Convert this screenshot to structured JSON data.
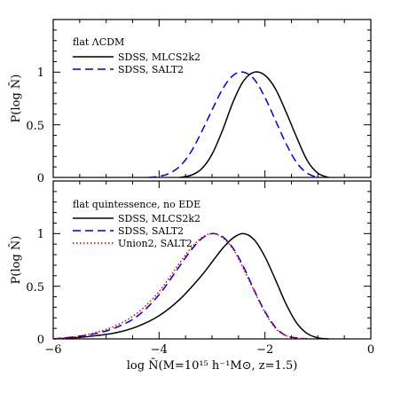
{
  "chart_data": [
    {
      "type": "line",
      "title": "flat ΛCDM",
      "xlabel": "log N̄(M=10¹⁵ h⁻¹M⊙, z=1.5)",
      "ylabel": "P(log N̄)",
      "xlim": [
        -6,
        0
      ],
      "ylim": [
        0,
        1.5
      ],
      "yticks": [
        0,
        0.5,
        1
      ],
      "ytick_labels": [
        "0",
        "0.5",
        "1"
      ],
      "grid": false,
      "legend_position": "top-left",
      "series": [
        {
          "name": "SDSS, MLCS2k2",
          "color": "#000000",
          "dash": "solid",
          "x": [
            -3.6,
            -3.4,
            -3.2,
            -3.0,
            -2.8,
            -2.6,
            -2.4,
            -2.2,
            -2.0,
            -1.8,
            -1.6,
            -1.4,
            -1.2,
            -1.0,
            -0.8
          ],
          "y": [
            0.0,
            0.02,
            0.08,
            0.22,
            0.45,
            0.72,
            0.92,
            1.0,
            0.97,
            0.84,
            0.62,
            0.38,
            0.16,
            0.04,
            0.0
          ]
        },
        {
          "name": "SDSS, SALT2",
          "color": "#0000cc",
          "dash": "dashed",
          "x": [
            -4.2,
            -4.0,
            -3.8,
            -3.6,
            -3.4,
            -3.2,
            -3.0,
            -2.8,
            -2.6,
            -2.4,
            -2.2,
            -2.0,
            -1.8,
            -1.6,
            -1.4,
            -1.2,
            -1.0
          ],
          "y": [
            0.0,
            0.01,
            0.04,
            0.11,
            0.24,
            0.43,
            0.64,
            0.84,
            0.97,
            1.0,
            0.93,
            0.76,
            0.54,
            0.32,
            0.14,
            0.04,
            0.0
          ]
        }
      ]
    },
    {
      "type": "line",
      "title": "flat quintessence, no EDE",
      "xlabel": "log N̄(M=10¹⁵ h⁻¹M⊙, z=1.5)",
      "ylabel": "P(log N̄)",
      "xlim": [
        -6,
        0
      ],
      "ylim": [
        0,
        1.5
      ],
      "xticks": [
        -6,
        -4,
        -2,
        0
      ],
      "xtick_labels": [
        "−6",
        "−4",
        "−2",
        "0"
      ],
      "yticks": [
        0,
        0.5,
        1
      ],
      "ytick_labels": [
        "0",
        "0.5",
        "1"
      ],
      "grid": false,
      "legend_position": "top-left",
      "series": [
        {
          "name": "SDSS, MLCS2k2",
          "color": "#000000",
          "dash": "solid",
          "x": [
            -6.0,
            -5.6,
            -5.2,
            -4.8,
            -4.4,
            -4.0,
            -3.6,
            -3.2,
            -3.0,
            -2.8,
            -2.6,
            -2.4,
            -2.2,
            -2.0,
            -1.8,
            -1.6,
            -1.4,
            -1.2,
            -1.0,
            -0.8
          ],
          "y": [
            0.0,
            0.01,
            0.03,
            0.06,
            0.12,
            0.22,
            0.38,
            0.6,
            0.73,
            0.86,
            0.96,
            1.0,
            0.94,
            0.78,
            0.56,
            0.33,
            0.15,
            0.05,
            0.01,
            0.0
          ]
        },
        {
          "name": "SDSS, SALT2",
          "color": "#0000cc",
          "dash": "dashed",
          "x": [
            -6.0,
            -5.6,
            -5.2,
            -4.8,
            -4.4,
            -4.0,
            -3.6,
            -3.4,
            -3.2,
            -3.0,
            -2.8,
            -2.6,
            -2.4,
            -2.2,
            -2.0,
            -1.8,
            -1.6,
            -1.4,
            -1.2
          ],
          "y": [
            0.0,
            0.02,
            0.05,
            0.11,
            0.22,
            0.42,
            0.7,
            0.84,
            0.95,
            1.0,
            0.97,
            0.86,
            0.68,
            0.46,
            0.26,
            0.11,
            0.03,
            0.01,
            0.0
          ]
        },
        {
          "name": "Union2, SALT2",
          "color": "#dd0000",
          "dash": "dotted",
          "x": [
            -6.0,
            -5.6,
            -5.2,
            -4.8,
            -4.4,
            -4.0,
            -3.6,
            -3.4,
            -3.2,
            -3.0,
            -2.8,
            -2.6,
            -2.4,
            -2.2,
            -2.0,
            -1.8,
            -1.6,
            -1.4,
            -1.2
          ],
          "y": [
            0.0,
            0.02,
            0.06,
            0.13,
            0.25,
            0.45,
            0.73,
            0.86,
            0.96,
            1.0,
            0.96,
            0.85,
            0.66,
            0.45,
            0.25,
            0.1,
            0.03,
            0.01,
            0.0
          ]
        }
      ]
    }
  ]
}
